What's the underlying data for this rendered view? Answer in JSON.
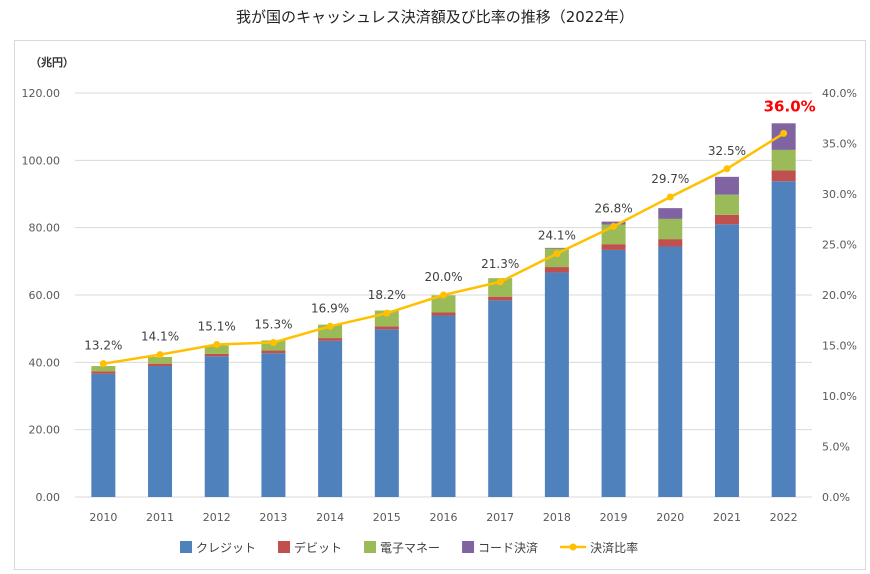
{
  "chart_data": {
    "type": "bar",
    "title": "我が国のキャッシュレス決済額及び比率の推移（2022年）",
    "ylabel": "（兆円）",
    "ylim": [
      0,
      120
    ],
    "y2lim": [
      0,
      40
    ],
    "yticks": [
      "0.00",
      "20.00",
      "40.00",
      "60.00",
      "80.00",
      "100.00",
      "120.00"
    ],
    "y2ticks": [
      "0.0%",
      "5.0%",
      "10.0%",
      "15.0%",
      "20.0%",
      "25.0%",
      "30.0%",
      "35.0%",
      "40.0%"
    ],
    "grid": true,
    "legend_position": "bottom",
    "categories": [
      "2010",
      "2011",
      "2012",
      "2013",
      "2014",
      "2015",
      "2016",
      "2017",
      "2018",
      "2019",
      "2020",
      "2021",
      "2022"
    ],
    "series": [
      {
        "name": "クレジット",
        "color": "#4f81bd",
        "values": [
          36.6,
          38.9,
          41.8,
          42.7,
          46.4,
          49.8,
          53.9,
          58.4,
          66.7,
          73.4,
          74.4,
          81.0,
          93.8
        ]
      },
      {
        "name": "デビット",
        "color": "#c0504d",
        "values": [
          0.7,
          0.7,
          0.7,
          0.8,
          0.8,
          0.9,
          0.9,
          1.1,
          1.6,
          1.7,
          2.2,
          2.8,
          3.2
        ]
      },
      {
        "name": "電子マネー",
        "color": "#9bbb59",
        "values": [
          1.6,
          2.0,
          2.5,
          3.0,
          4.0,
          4.7,
          5.1,
          5.5,
          5.5,
          5.8,
          6.0,
          6.0,
          6.1
        ]
      },
      {
        "name": "コード決済",
        "color": "#8064a2",
        "values": [
          0,
          0,
          0,
          0,
          0,
          0,
          0,
          0,
          0.2,
          0.9,
          3.2,
          5.3,
          7.9
        ]
      }
    ],
    "line": {
      "name": "決済比率",
      "color": "#ffc000",
      "values": [
        13.2,
        14.1,
        15.1,
        15.3,
        16.9,
        18.2,
        20.0,
        21.3,
        24.1,
        26.8,
        29.7,
        32.5,
        36.0
      ],
      "labels": [
        "13.2%",
        "14.1%",
        "15.1%",
        "15.3%",
        "16.9%",
        "18.2%",
        "20.0%",
        "21.3%",
        "24.1%",
        "26.8%",
        "29.7%",
        "32.5%",
        "36.0%"
      ],
      "highlight_color": "#ff0000"
    }
  }
}
